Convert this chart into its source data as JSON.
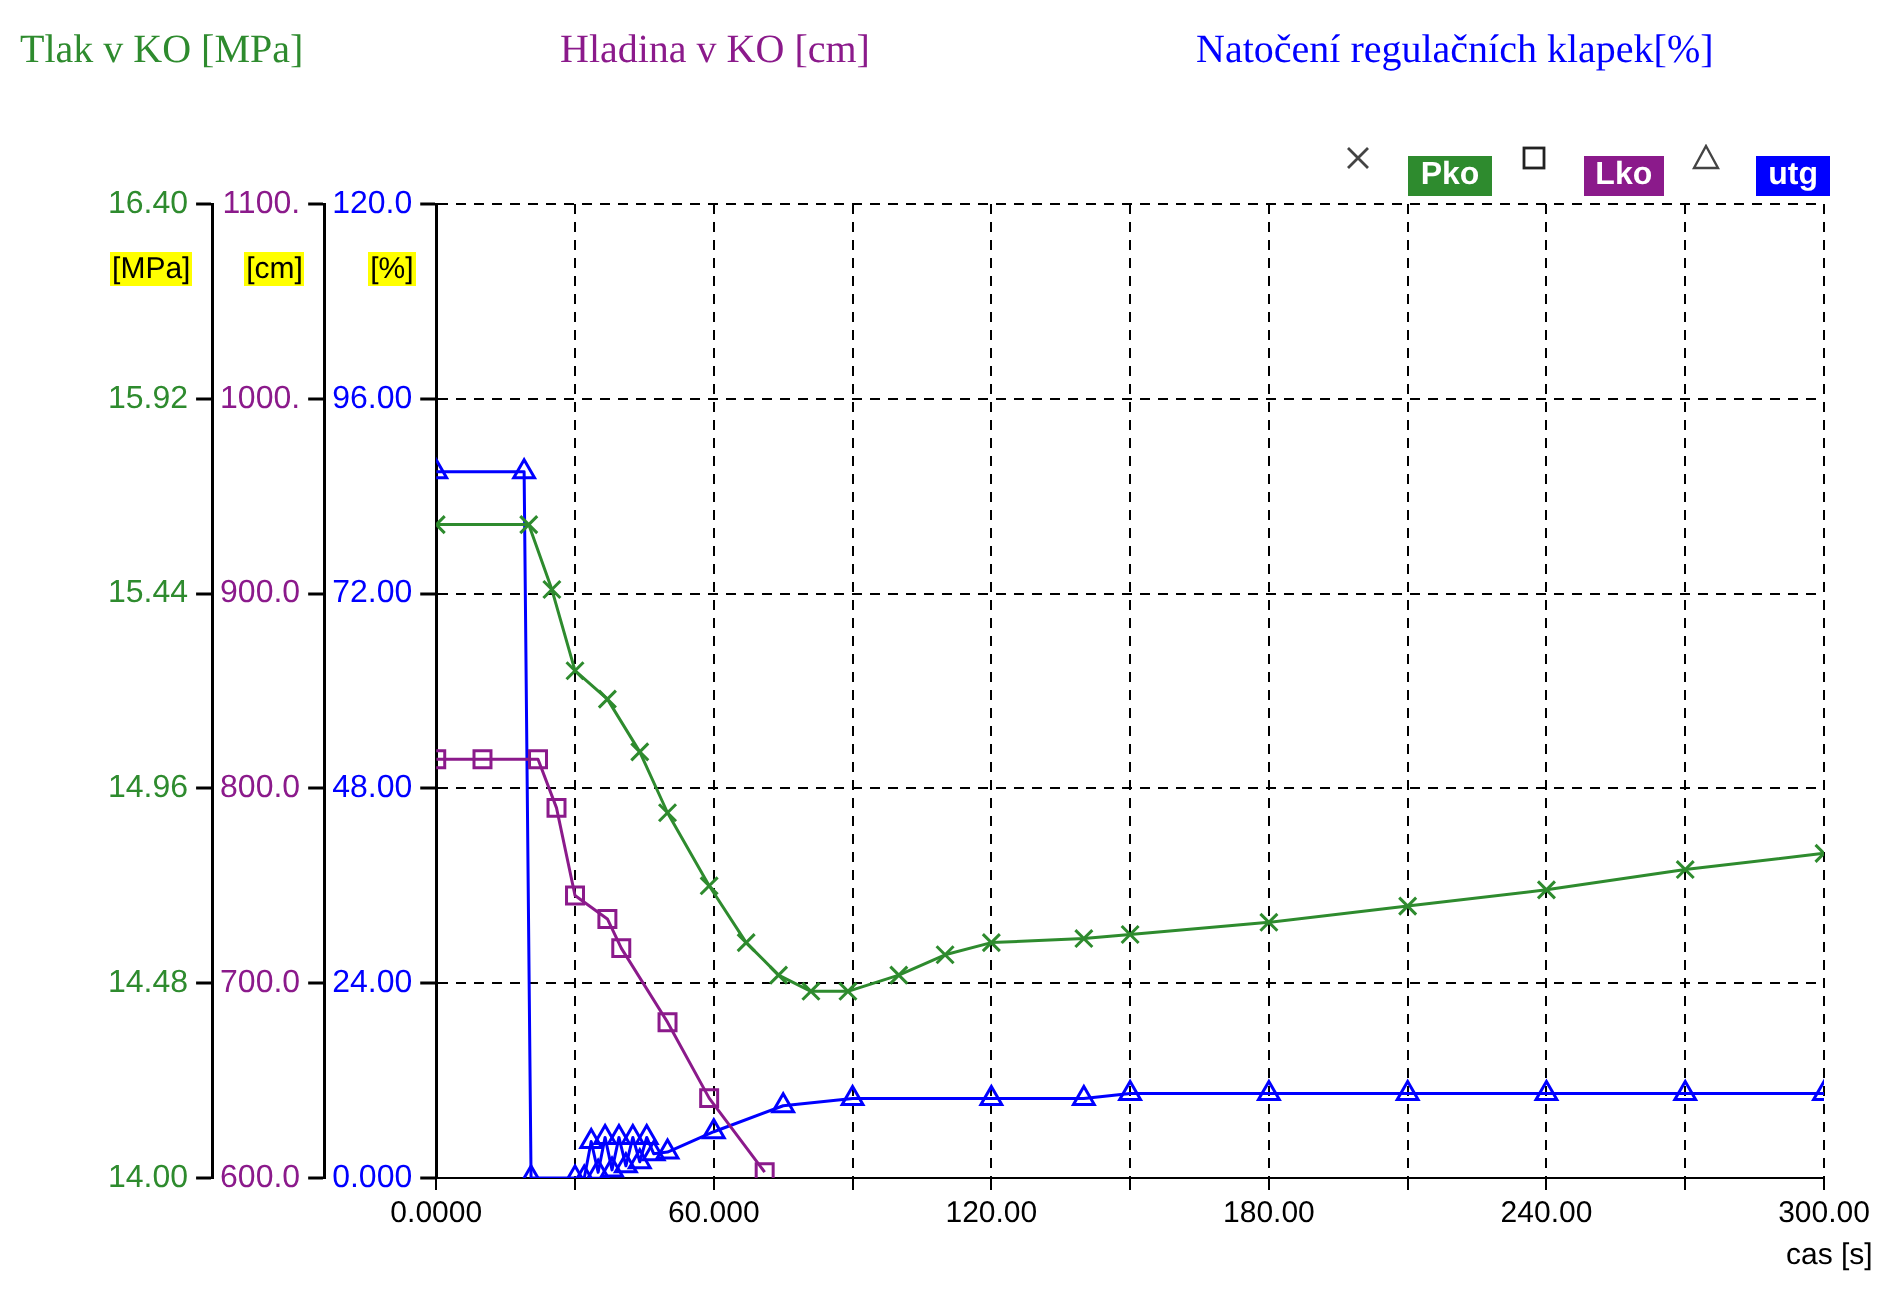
{
  "chart_data": {
    "type": "line",
    "ylabel": "Tlak v KO [MPa]",
    "y2label": "Hladina v  KO [cm]",
    "y3label": "Natočení regulačních klapek[%]",
    "xlabel": "cas [s]",
    "annotations": [
      "[MPa]",
      "[cm]",
      "[%]"
    ],
    "xlim": [
      0,
      300
    ],
    "xticks": [
      {
        "value": 0,
        "label": "0.0000"
      },
      {
        "value": 30,
        "label": null
      },
      {
        "value": 60,
        "label": "60.000"
      },
      {
        "value": 90,
        "label": null
      },
      {
        "value": 120,
        "label": "120.00"
      },
      {
        "value": 150,
        "label": null
      },
      {
        "value": 180,
        "label": "180.00"
      },
      {
        "value": 210,
        "label": null
      },
      {
        "value": 240,
        "label": "240.00"
      },
      {
        "value": 270,
        "label": null
      },
      {
        "value": 300,
        "label": "300.00"
      }
    ],
    "ylim": [
      14,
      16.4
    ],
    "yticks": [
      {
        "value": 14,
        "label": "14.00"
      },
      {
        "value": 14.48,
        "label": "14.48"
      },
      {
        "value": 14.96,
        "label": "14.96"
      },
      {
        "value": 15.44,
        "label": "15.44"
      },
      {
        "value": 15.92,
        "label": "15.92"
      },
      {
        "value": 16.4,
        "label": "16.40"
      }
    ],
    "y2lim": [
      600,
      1100
    ],
    "y2ticks": [
      {
        "value": 600,
        "label": "600.0"
      },
      {
        "value": 700,
        "label": "700.0"
      },
      {
        "value": 800,
        "label": "800.0"
      },
      {
        "value": 900,
        "label": "900.0"
      },
      {
        "value": 1000,
        "label": "1000."
      },
      {
        "value": 1100,
        "label": "1100."
      }
    ],
    "y3lim": [
      0,
      120
    ],
    "y3ticks": [
      {
        "value": 0,
        "label": "0.000"
      },
      {
        "value": 24,
        "label": "24.00"
      },
      {
        "value": 48,
        "label": "48.00"
      },
      {
        "value": 72,
        "label": "72.00"
      },
      {
        "value": 96,
        "label": "96.00"
      },
      {
        "value": 120,
        "label": "120.0"
      }
    ],
    "grid": true,
    "legend": "top right",
    "line_style": "solid",
    "series": [
      {
        "name": "Pko",
        "color": "#2e8b2e",
        "axis": "y",
        "marker": "cross",
        "x": [
          0,
          20,
          25,
          30,
          37,
          44,
          50,
          59,
          67,
          74,
          81,
          89,
          100,
          110,
          120,
          140,
          150,
          180,
          210,
          240,
          270,
          300
        ],
        "values": [
          15.61,
          15.61,
          15.45,
          15.25,
          15.18,
          15.05,
          14.9,
          14.72,
          14.58,
          14.5,
          14.46,
          14.46,
          14.5,
          14.55,
          14.58,
          14.59,
          14.6,
          14.63,
          14.67,
          14.71,
          14.76,
          14.8
        ]
      },
      {
        "name": "Lko",
        "color": "#8b1a8b",
        "axis": "y2",
        "marker": "square",
        "x": [
          0,
          10,
          22,
          26,
          30,
          37,
          40,
          50,
          59,
          71
        ],
        "values": [
          815,
          815,
          815,
          790,
          745,
          733,
          718,
          680,
          641,
          603
        ]
      },
      {
        "name": "utg",
        "color": "#0000ff",
        "axis": "y3",
        "marker": "triangle",
        "x": [
          0,
          19,
          20.5,
          30,
          32,
          33.5,
          35,
          36.5,
          38,
          39.5,
          41,
          42.5,
          44,
          45.5,
          47,
          50,
          60,
          75,
          90,
          120,
          140,
          150,
          180,
          210,
          240,
          270,
          300
        ],
        "values": [
          87,
          87,
          0,
          0,
          0,
          4.5,
          0.7,
          5,
          1,
          5,
          1.5,
          5,
          2,
          5,
          3,
          3.2,
          5.7,
          8.9,
          9.8,
          9.8,
          9.8,
          10.4,
          10.4,
          10.4,
          10.4,
          10.4,
          10.4
        ]
      }
    ]
  }
}
